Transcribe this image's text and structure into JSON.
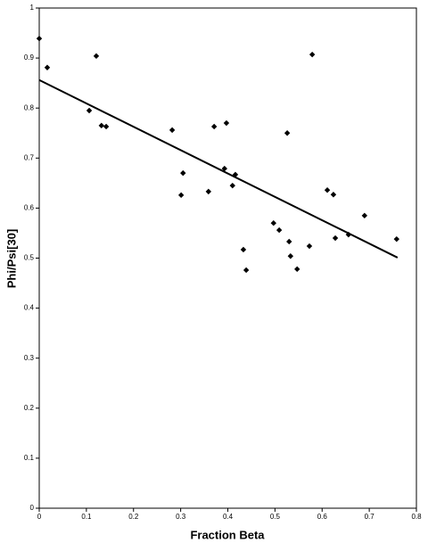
{
  "chart_data": {
    "type": "scatter",
    "x_label": "Fraction Beta",
    "y_label": "Phi/Psi[30]",
    "xlim": [
      0,
      0.8
    ],
    "ylim": [
      0,
      1
    ],
    "xticks": [
      0,
      0.1,
      0.2,
      0.3,
      0.4,
      0.5,
      0.6,
      0.7,
      0.8
    ],
    "yticks": [
      0,
      0.1,
      0.2,
      0.3,
      0.4,
      0.5,
      0.6,
      0.7,
      0.8,
      0.9,
      1
    ],
    "color": "#000000",
    "x": [
      0,
      0.017,
      0.106,
      0.121,
      0.132,
      0.142,
      0.282,
      0.305,
      0.301,
      0.359,
      0.371,
      0.393,
      0.397,
      0.41,
      0.416,
      0.433,
      0.439,
      0.497,
      0.509,
      0.526,
      0.53,
      0.533,
      0.547,
      0.573,
      0.579,
      0.611,
      0.624,
      0.628,
      0.656,
      0.69,
      0.758
    ],
    "y": [
      0.939,
      0.881,
      0.795,
      0.904,
      0.765,
      0.763,
      0.756,
      0.67,
      0.626,
      0.633,
      0.763,
      0.679,
      0.77,
      0.645,
      0.667,
      0.517,
      0.476,
      0.57,
      0.556,
      0.75,
      0.533,
      0.504,
      0.478,
      0.524,
      0.907,
      0.636,
      0.627,
      0.54,
      0.547,
      0.585,
      0.538
    ],
    "trendline": {
      "x": [
        0,
        0.76
      ],
      "y": [
        0.856,
        0.501
      ]
    }
  }
}
